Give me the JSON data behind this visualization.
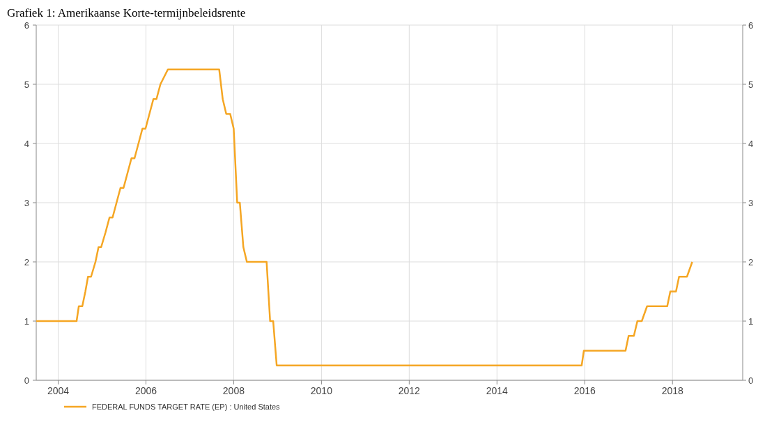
{
  "chart_data": {
    "type": "line",
    "title": "Grafiek 1: Amerikaanse Korte-termijnbeleidsrente",
    "x": [
      2003.5,
      2004.42,
      2004.47,
      2004.55,
      2004.62,
      2004.68,
      2004.75,
      2004.85,
      2004.92,
      2004.98,
      2005.08,
      2005.17,
      2005.24,
      2005.33,
      2005.42,
      2005.49,
      2005.58,
      2005.67,
      2005.74,
      2005.83,
      2005.92,
      2005.99,
      2006.08,
      2006.17,
      2006.24,
      2006.33,
      2006.5,
      2007.67,
      2007.75,
      2007.83,
      2007.92,
      2008.0,
      2008.08,
      2008.14,
      2008.22,
      2008.3,
      2008.75,
      2008.83,
      2008.9,
      2008.98,
      2015.93,
      2015.98,
      2016.93,
      2017.0,
      2017.12,
      2017.2,
      2017.3,
      2017.42,
      2017.88,
      2017.95,
      2018.08,
      2018.15,
      2018.33,
      2018.45
    ],
    "series": [
      {
        "name": "FEDERAL FUNDS TARGET RATE (EP) : United States",
        "color": "#f5a623",
        "values": [
          1,
          1,
          1.25,
          1.25,
          1.5,
          1.75,
          1.75,
          2,
          2.25,
          2.25,
          2.5,
          2.75,
          2.75,
          3,
          3.25,
          3.25,
          3.5,
          3.75,
          3.75,
          4,
          4.25,
          4.25,
          4.5,
          4.75,
          4.75,
          5,
          5.25,
          5.25,
          4.75,
          4.5,
          4.5,
          4.25,
          3,
          3,
          2.25,
          2,
          2,
          1,
          1,
          0.25,
          0.25,
          0.5,
          0.5,
          0.75,
          0.75,
          1,
          1,
          1.25,
          1.25,
          1.5,
          1.5,
          1.75,
          1.75,
          2
        ]
      }
    ],
    "xlim": [
      2003.5,
      2019.6
    ],
    "xticks": [
      2004,
      2006,
      2008,
      2010,
      2012,
      2014,
      2016,
      2018
    ],
    "ylim": [
      0,
      6
    ],
    "yticks": [
      0,
      1,
      2,
      3,
      4,
      5,
      6
    ],
    "y2lim": [
      0,
      6
    ],
    "y2ticks": [
      0,
      1,
      2,
      3,
      4,
      5,
      6
    ],
    "grid": true,
    "legend": "bottom left",
    "line_style": "solid",
    "marker": "none"
  }
}
